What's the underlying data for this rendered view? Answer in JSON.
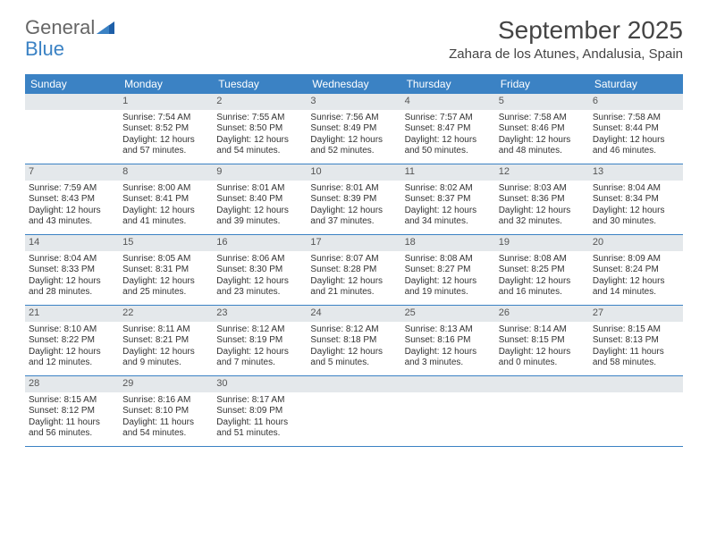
{
  "brand": {
    "part1": "General",
    "part2": "Blue"
  },
  "title": "September 2025",
  "location": "Zahara de los Atunes, Andalusia, Spain",
  "colors": {
    "header_bg": "#3b82c4",
    "header_text": "#ffffff",
    "daynum_bg": "#e4e8eb",
    "text": "#333333",
    "rule": "#3b82c4"
  },
  "day_names": [
    "Sunday",
    "Monday",
    "Tuesday",
    "Wednesday",
    "Thursday",
    "Friday",
    "Saturday"
  ],
  "weeks": [
    [
      null,
      {
        "n": "1",
        "sr": "Sunrise: 7:54 AM",
        "ss": "Sunset: 8:52 PM",
        "dl": "Daylight: 12 hours and 57 minutes."
      },
      {
        "n": "2",
        "sr": "Sunrise: 7:55 AM",
        "ss": "Sunset: 8:50 PM",
        "dl": "Daylight: 12 hours and 54 minutes."
      },
      {
        "n": "3",
        "sr": "Sunrise: 7:56 AM",
        "ss": "Sunset: 8:49 PM",
        "dl": "Daylight: 12 hours and 52 minutes."
      },
      {
        "n": "4",
        "sr": "Sunrise: 7:57 AM",
        "ss": "Sunset: 8:47 PM",
        "dl": "Daylight: 12 hours and 50 minutes."
      },
      {
        "n": "5",
        "sr": "Sunrise: 7:58 AM",
        "ss": "Sunset: 8:46 PM",
        "dl": "Daylight: 12 hours and 48 minutes."
      },
      {
        "n": "6",
        "sr": "Sunrise: 7:58 AM",
        "ss": "Sunset: 8:44 PM",
        "dl": "Daylight: 12 hours and 46 minutes."
      }
    ],
    [
      {
        "n": "7",
        "sr": "Sunrise: 7:59 AM",
        "ss": "Sunset: 8:43 PM",
        "dl": "Daylight: 12 hours and 43 minutes."
      },
      {
        "n": "8",
        "sr": "Sunrise: 8:00 AM",
        "ss": "Sunset: 8:41 PM",
        "dl": "Daylight: 12 hours and 41 minutes."
      },
      {
        "n": "9",
        "sr": "Sunrise: 8:01 AM",
        "ss": "Sunset: 8:40 PM",
        "dl": "Daylight: 12 hours and 39 minutes."
      },
      {
        "n": "10",
        "sr": "Sunrise: 8:01 AM",
        "ss": "Sunset: 8:39 PM",
        "dl": "Daylight: 12 hours and 37 minutes."
      },
      {
        "n": "11",
        "sr": "Sunrise: 8:02 AM",
        "ss": "Sunset: 8:37 PM",
        "dl": "Daylight: 12 hours and 34 minutes."
      },
      {
        "n": "12",
        "sr": "Sunrise: 8:03 AM",
        "ss": "Sunset: 8:36 PM",
        "dl": "Daylight: 12 hours and 32 minutes."
      },
      {
        "n": "13",
        "sr": "Sunrise: 8:04 AM",
        "ss": "Sunset: 8:34 PM",
        "dl": "Daylight: 12 hours and 30 minutes."
      }
    ],
    [
      {
        "n": "14",
        "sr": "Sunrise: 8:04 AM",
        "ss": "Sunset: 8:33 PM",
        "dl": "Daylight: 12 hours and 28 minutes."
      },
      {
        "n": "15",
        "sr": "Sunrise: 8:05 AM",
        "ss": "Sunset: 8:31 PM",
        "dl": "Daylight: 12 hours and 25 minutes."
      },
      {
        "n": "16",
        "sr": "Sunrise: 8:06 AM",
        "ss": "Sunset: 8:30 PM",
        "dl": "Daylight: 12 hours and 23 minutes."
      },
      {
        "n": "17",
        "sr": "Sunrise: 8:07 AM",
        "ss": "Sunset: 8:28 PM",
        "dl": "Daylight: 12 hours and 21 minutes."
      },
      {
        "n": "18",
        "sr": "Sunrise: 8:08 AM",
        "ss": "Sunset: 8:27 PM",
        "dl": "Daylight: 12 hours and 19 minutes."
      },
      {
        "n": "19",
        "sr": "Sunrise: 8:08 AM",
        "ss": "Sunset: 8:25 PM",
        "dl": "Daylight: 12 hours and 16 minutes."
      },
      {
        "n": "20",
        "sr": "Sunrise: 8:09 AM",
        "ss": "Sunset: 8:24 PM",
        "dl": "Daylight: 12 hours and 14 minutes."
      }
    ],
    [
      {
        "n": "21",
        "sr": "Sunrise: 8:10 AM",
        "ss": "Sunset: 8:22 PM",
        "dl": "Daylight: 12 hours and 12 minutes."
      },
      {
        "n": "22",
        "sr": "Sunrise: 8:11 AM",
        "ss": "Sunset: 8:21 PM",
        "dl": "Daylight: 12 hours and 9 minutes."
      },
      {
        "n": "23",
        "sr": "Sunrise: 8:12 AM",
        "ss": "Sunset: 8:19 PM",
        "dl": "Daylight: 12 hours and 7 minutes."
      },
      {
        "n": "24",
        "sr": "Sunrise: 8:12 AM",
        "ss": "Sunset: 8:18 PM",
        "dl": "Daylight: 12 hours and 5 minutes."
      },
      {
        "n": "25",
        "sr": "Sunrise: 8:13 AM",
        "ss": "Sunset: 8:16 PM",
        "dl": "Daylight: 12 hours and 3 minutes."
      },
      {
        "n": "26",
        "sr": "Sunrise: 8:14 AM",
        "ss": "Sunset: 8:15 PM",
        "dl": "Daylight: 12 hours and 0 minutes."
      },
      {
        "n": "27",
        "sr": "Sunrise: 8:15 AM",
        "ss": "Sunset: 8:13 PM",
        "dl": "Daylight: 11 hours and 58 minutes."
      }
    ],
    [
      {
        "n": "28",
        "sr": "Sunrise: 8:15 AM",
        "ss": "Sunset: 8:12 PM",
        "dl": "Daylight: 11 hours and 56 minutes."
      },
      {
        "n": "29",
        "sr": "Sunrise: 8:16 AM",
        "ss": "Sunset: 8:10 PM",
        "dl": "Daylight: 11 hours and 54 minutes."
      },
      {
        "n": "30",
        "sr": "Sunrise: 8:17 AM",
        "ss": "Sunset: 8:09 PM",
        "dl": "Daylight: 11 hours and 51 minutes."
      },
      null,
      null,
      null,
      null
    ]
  ]
}
